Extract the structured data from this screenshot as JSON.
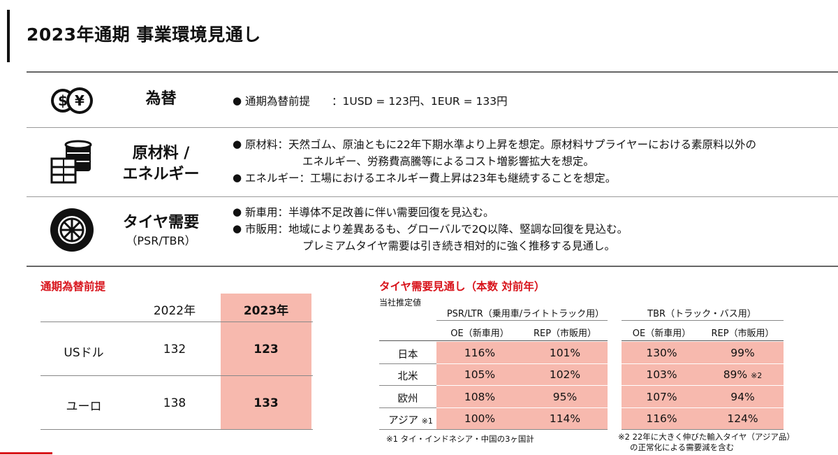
{
  "title": "2023年通期 事業環境見通し",
  "rows": [
    {
      "label": "為替",
      "bullets": [
        "通期為替前提　　：1USD = 123円、1EUR = 133円"
      ]
    },
    {
      "label": "原材料 /",
      "label2": "エネルギー",
      "bullets": [
        "原材料：天然ゴム、原油ともに22年下期水準より上昇を想定。原材料サプライヤーにおける素原料以外の",
        "エネルギー、労務費高騰等によるコスト増影響拡大を想定。",
        "エネルギー：工場におけるエネルギー費上昇は23年も継続することを想定。"
      ]
    },
    {
      "label": "タイヤ需要",
      "label2": "（PSR/TBR）",
      "bullets": [
        "新車用：半導体不足改善に伴い需要回復を見込む。",
        "市販用：地域により差異あるも、グローバルで2Q以降、堅調な回復を見込む。",
        "プレミアムタイヤ需要は引き続き相対的に強く推移する見通し。"
      ]
    }
  ],
  "fx": {
    "title": "通期為替前提",
    "col_2022": "2022年",
    "col_2023": "2023年",
    "rows": [
      {
        "name": "USドル",
        "v2022": "132",
        "v2023": "123"
      },
      {
        "name": "ユーロ",
        "v2022": "138",
        "v2023": "133"
      }
    ]
  },
  "tire": {
    "title": "タイヤ需要見通し（本数 対前年）",
    "estimate": "当社推定値",
    "psr_header": "PSR/LTR（乗用車/ライトトラック用）",
    "tbr_header": "TBR（トラック・バス用）",
    "oe": "OE（新車用）",
    "rep": "REP（市販用）",
    "rows": [
      {
        "region": "日本",
        "psr_oe": "116%",
        "psr_rep": "101%",
        "tbr_oe": "130%",
        "tbr_rep": "99%",
        "mark": "",
        "tbr_mark": ""
      },
      {
        "region": "北米",
        "psr_oe": "105%",
        "psr_rep": "102%",
        "tbr_oe": "103%",
        "tbr_rep": "89%",
        "mark": "",
        "tbr_mark": "※2"
      },
      {
        "region": "欧州",
        "psr_oe": "108%",
        "psr_rep": "95%",
        "tbr_oe": "107%",
        "tbr_rep": "94%",
        "mark": "",
        "tbr_mark": ""
      },
      {
        "region": "アジア",
        "psr_oe": "100%",
        "psr_rep": "114%",
        "tbr_oe": "116%",
        "tbr_rep": "124%",
        "mark": "※1",
        "tbr_mark": ""
      }
    ],
    "note1": "※1 タイ・インドネシア・中国の3ヶ国計",
    "note2a": "※2 22年に大きく伸びた輸入タイヤ（アジア品）",
    "note2b": "の正常化による需要減を含む"
  },
  "colors": {
    "accent": "#d8141c",
    "highlight": "#f7b9ae"
  }
}
